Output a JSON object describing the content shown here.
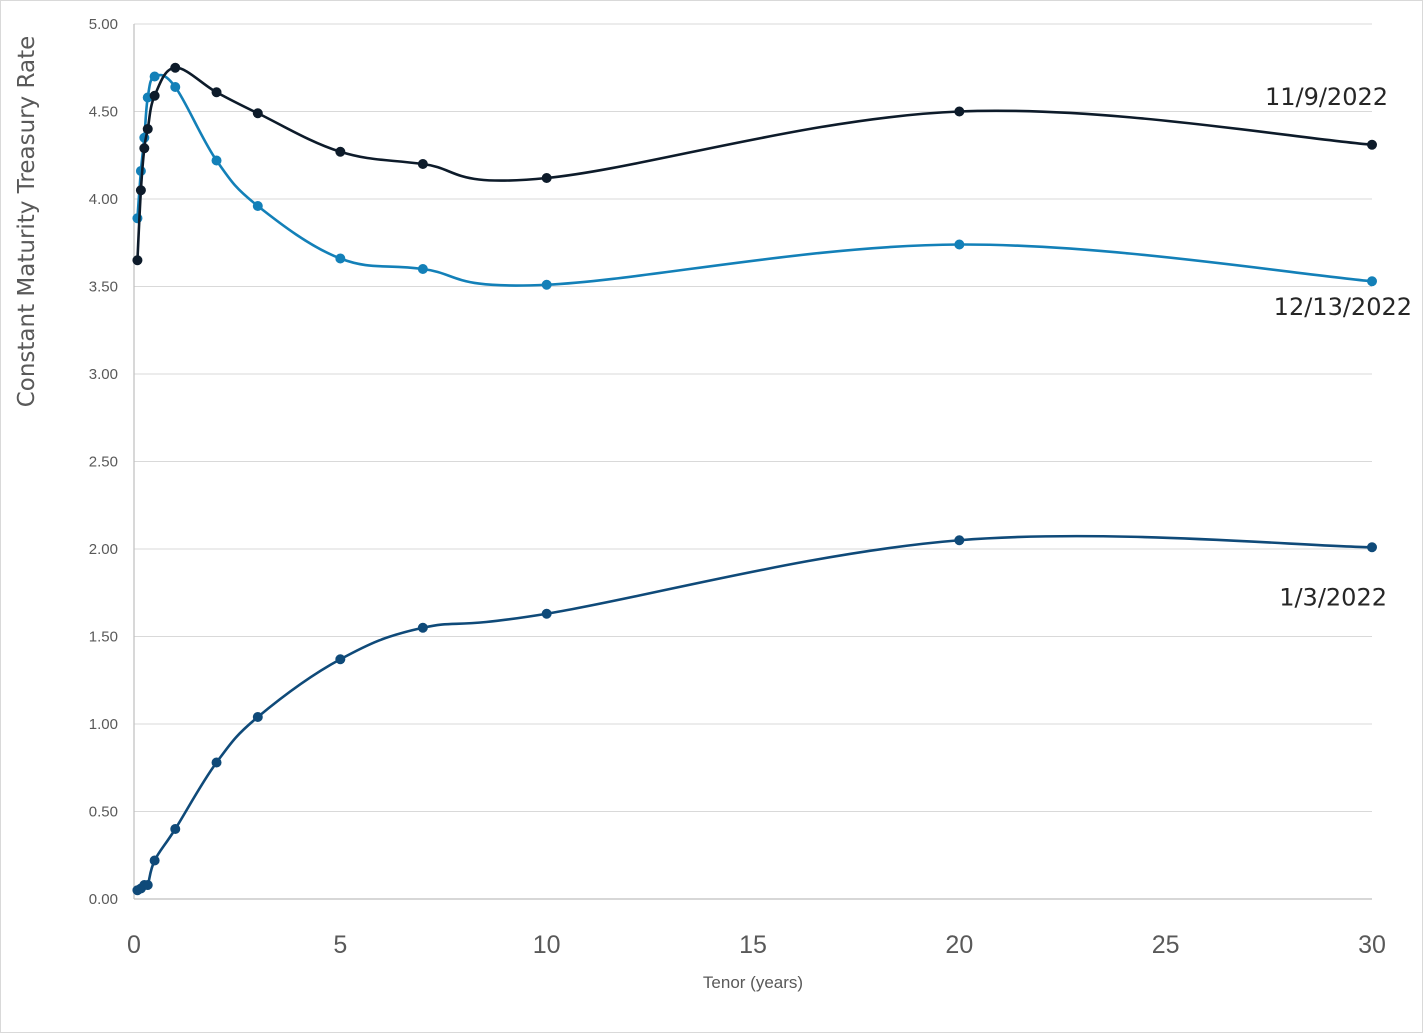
{
  "chart_data": {
    "type": "line",
    "xlabel": "Tenor (years)",
    "ylabel": "Constant Maturity Treasury Rate",
    "xlim": [
      0,
      30
    ],
    "ylim": [
      0,
      5
    ],
    "x_ticks": [
      "0",
      "5",
      "10",
      "15",
      "20",
      "25",
      "30"
    ],
    "y_ticks": [
      "0.00",
      "0.50",
      "1.00",
      "1.50",
      "2.00",
      "2.50",
      "3.00",
      "3.50",
      "4.00",
      "4.50",
      "5.00"
    ],
    "grid": "horizontal",
    "legend": "inline labels at right end of each series",
    "series": [
      {
        "name": "11/9/2022",
        "color": "#0d1b2a",
        "x": [
          0.083,
          0.167,
          0.25,
          0.333,
          0.5,
          1,
          2,
          3,
          5,
          7,
          10,
          20,
          30
        ],
        "y": [
          3.65,
          4.05,
          4.29,
          4.4,
          4.59,
          4.75,
          4.61,
          4.49,
          4.27,
          4.2,
          4.12,
          4.5,
          4.31
        ]
      },
      {
        "name": "12/13/2022",
        "color": "#1380b8",
        "x": [
          0.083,
          0.167,
          0.25,
          0.333,
          0.5,
          1,
          2,
          3,
          5,
          7,
          10,
          20,
          30
        ],
        "y": [
          3.89,
          4.16,
          4.35,
          4.58,
          4.7,
          4.64,
          4.22,
          3.96,
          3.66,
          3.6,
          3.51,
          3.74,
          3.53
        ]
      },
      {
        "name": "1/3/2022",
        "color": "#0f4a79",
        "x": [
          0.083,
          0.167,
          0.25,
          0.333,
          0.5,
          1,
          2,
          3,
          5,
          7,
          10,
          20,
          30
        ],
        "y": [
          0.05,
          0.06,
          0.08,
          0.08,
          0.22,
          0.4,
          0.78,
          1.04,
          1.37,
          1.55,
          1.63,
          2.05,
          2.01
        ]
      }
    ]
  }
}
